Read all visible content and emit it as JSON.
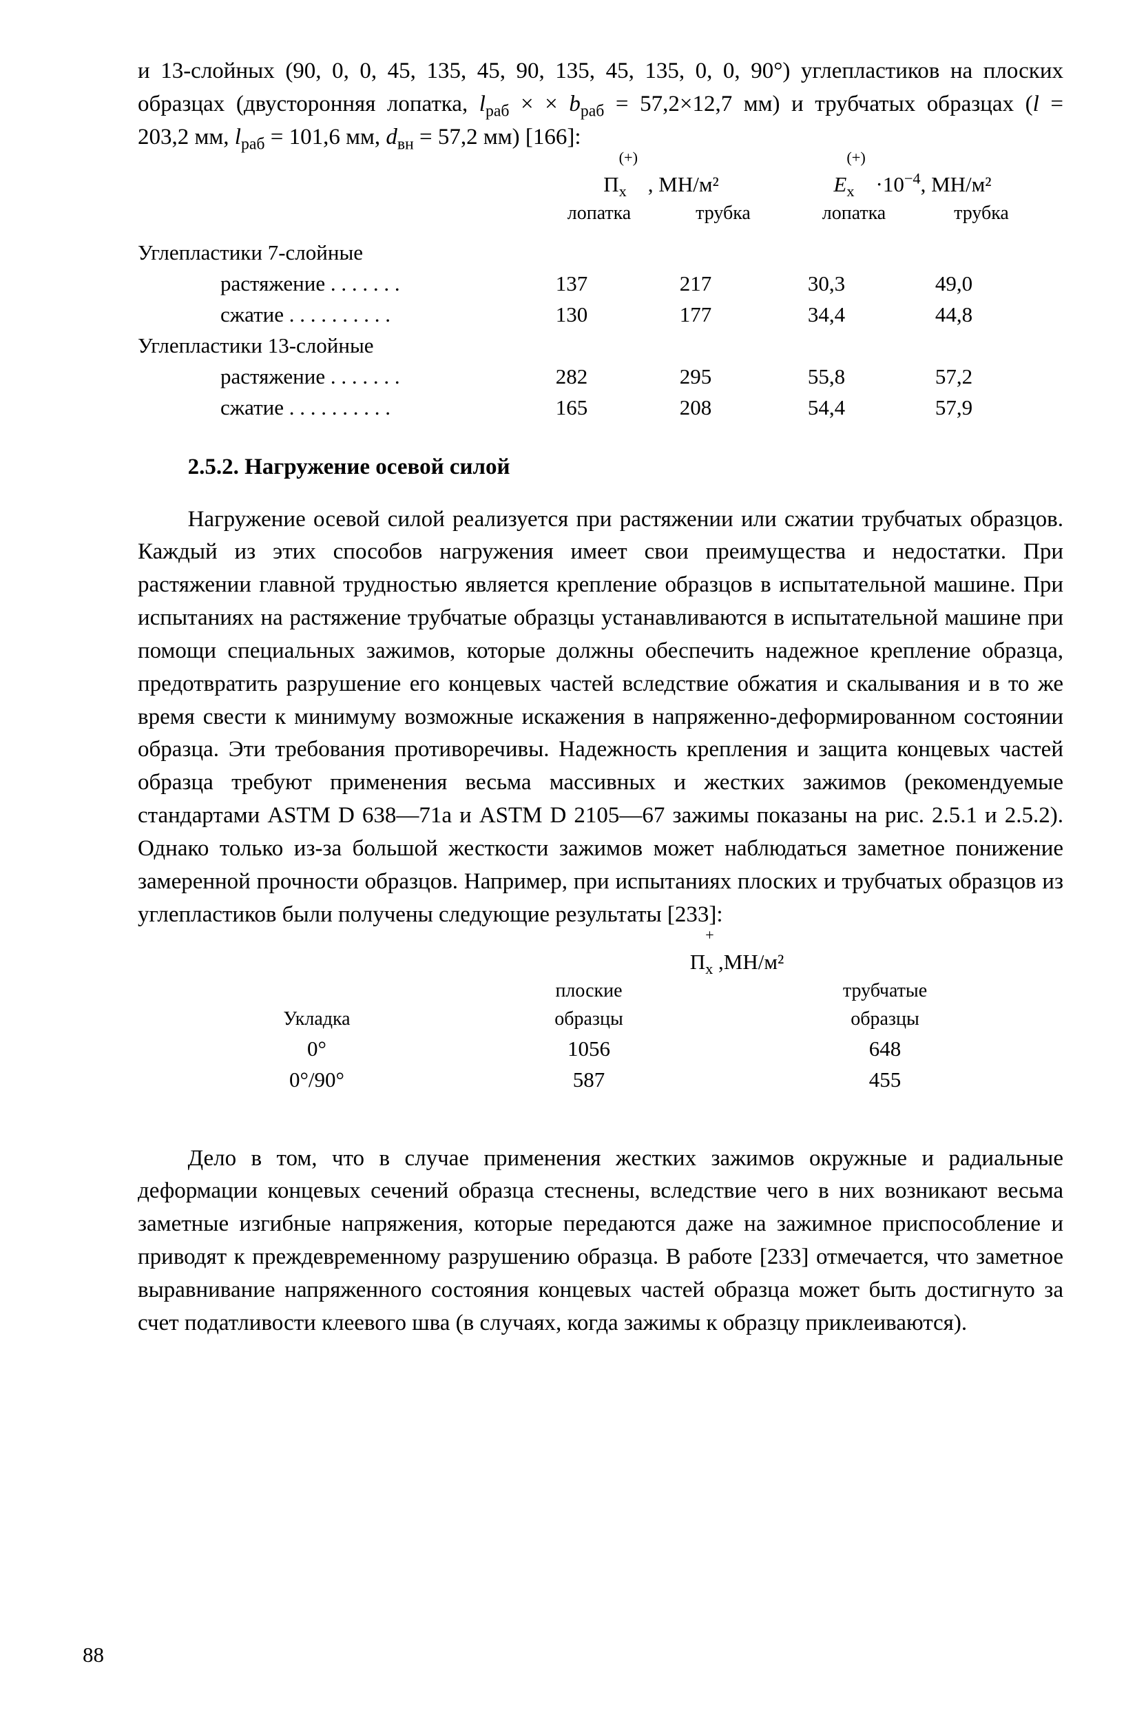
{
  "top_para": "и 13-слойных (90, 0, 0, 45, 135, 45, 90, 135, 45, 135, 0, 0, 90°) углепластиков на плоских образцах (двусторонняя лопатка, l₀ₐᵇ × × b₀ₐᵇ = 57,2×12,7 мм) и трубчатых образцах (l = 203,2 мм, l₀ₐᵇ = 101,6 мм, dᵥₙ = 57,2 мм) [166]:",
  "table1": {
    "head": {
      "group1_top": "П⁺⁽⁻⁾ₓ, МН/м²",
      "group2_top": "E⁺⁽⁻⁾ₓ·10⁻⁴, МН/м²",
      "sub1": "лопатка",
      "sub2": "трубка",
      "sub3": "лопатка",
      "sub4": "трубка"
    },
    "section1": "Углепластики 7-слойные",
    "section2": "Углепластики 13-слойные",
    "row_tensile": "растяжение",
    "row_compress": "сжатие",
    "r1": {
      "c1": "137",
      "c2": "217",
      "c3": "30,3",
      "c4": "49,0"
    },
    "r2": {
      "c1": "130",
      "c2": "177",
      "c3": "34,4",
      "c4": "44,8"
    },
    "r3": {
      "c1": "282",
      "c2": "295",
      "c3": "55,8",
      "c4": "57,2"
    },
    "r4": {
      "c1": "165",
      "c2": "208",
      "c3": "54,4",
      "c4": "57,9"
    }
  },
  "section_title": "2.5.2. Нагружение осевой силой",
  "main_para": "Нагружение осевой силой реализуется при растяжении или сжатии трубчатых образцов. Каждый из этих способов нагружения имеет свои преимущества и недостатки. При растяжении главной трудностью является крепление образцов в испытательной машине. При испытаниях на растяжение трубчатые образцы устанавливаются в испытательной машине при помощи специальных зажимов, которые должны обеспечить надежное крепление образца, предотвратить разрушение его концевых частей вследствие обжатия и скалывания и в то же время свести к минимуму возможные искажения в напряженно-деформированном состоянии образца. Эти требования противоречивы. Надежность крепления и защита концевых частей образца требуют применения весьма массивных и жестких зажимов (рекомендуемые стандартами ASTM D 638—71a и ASTM D 2105—67 зажимы показаны на рис. 2.5.1 и 2.5.2). Однако только из-за большой жесткости зажимов может наблюдаться заметное понижение замеренной прочности образцов. Например, при испытаниях плоских и трубчатых образцов из углепластиков были получены следующие результаты [233]:",
  "table2": {
    "head_left": "Укладка",
    "head_top": "П⁺ₓ,МН/м²",
    "sub1": "плоские\nобразцы",
    "sub2": "трубчатые\nобразцы",
    "r1": {
      "c0": "0°",
      "c1": "1056",
      "c2": "648"
    },
    "r2": {
      "c0": "0°/90°",
      "c1": "587",
      "c2": "455"
    }
  },
  "bottom_para": "Дело в том, что в случае применения жестких зажимов окружные и радиальные деформации концевых сечений образца стеснены, вследствие чего в них возникают весьма заметные изгибные напряжения, которые передаются даже на зажимное приспособление и приводят к преждевременному разрушению образца. В работе [233] отмечается, что заметное выравнивание напряженного состояния концевых частей образца может быть достигнуто за счет податливости клеевого шва (в случаях, когда зажимы к образцу приклеиваются).",
  "page_number": "88"
}
